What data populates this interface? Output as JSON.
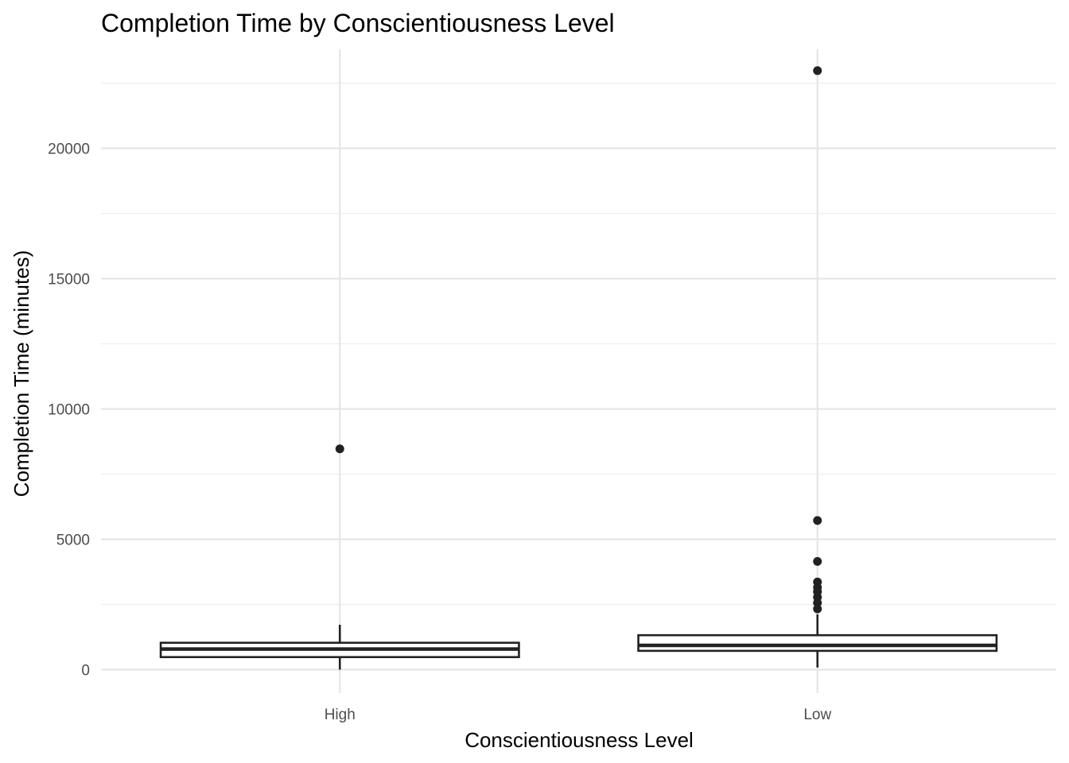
{
  "chart_data": {
    "type": "box",
    "title": "Completion Time by Conscientiousness Level",
    "xlabel": "Conscientiousness Level",
    "ylabel": "Completion Time (minutes)",
    "ylim": [
      -900,
      23800
    ],
    "y_ticks": [
      0,
      5000,
      10000,
      15000,
      20000
    ],
    "y_tick_labels": [
      "0",
      "5000",
      "10000",
      "15000",
      "20000"
    ],
    "y_minor_ticks": [
      2500,
      7500,
      12500,
      17500,
      22500
    ],
    "grid": true,
    "categories": [
      "High",
      "Low"
    ],
    "boxes": [
      {
        "category": "High",
        "whisker_low": 0,
        "q1": 480,
        "median": 790,
        "q3": 1030,
        "whisker_high": 1720,
        "outliers": [
          8470
        ]
      },
      {
        "category": "Low",
        "whisker_low": 80,
        "q1": 720,
        "median": 930,
        "q3": 1320,
        "whisker_high": 2120,
        "outliers": [
          2330,
          2560,
          2780,
          2990,
          3150,
          3360,
          4150,
          5720,
          22980
        ]
      }
    ],
    "colors": {
      "box_line": "#222222",
      "box_fill": "#ffffff",
      "grid": "#e5e5e5",
      "tick_text": "#4d4d4d"
    }
  }
}
